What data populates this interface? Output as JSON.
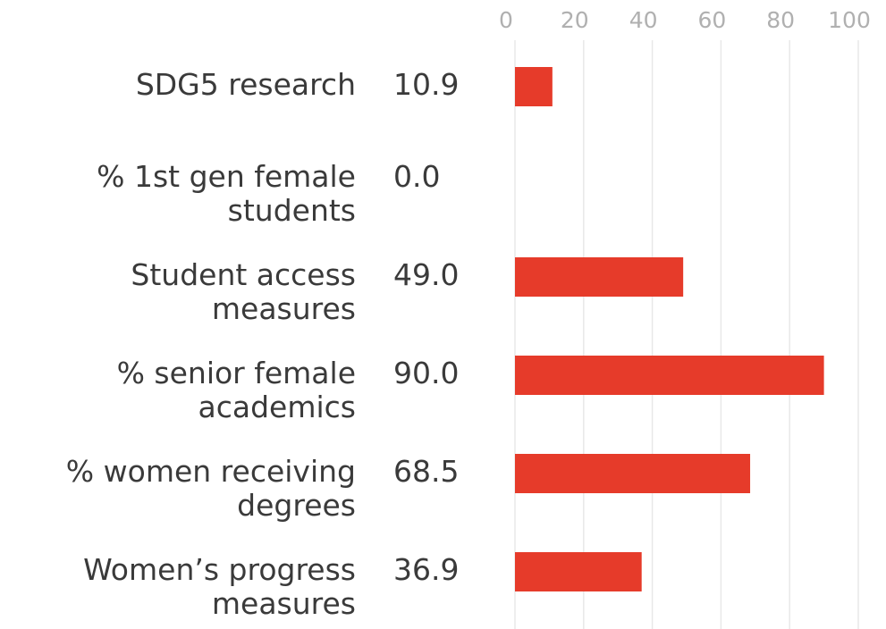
{
  "chart_data": {
    "type": "barh",
    "categories": [
      "SDG5 research",
      "% 1st gen female\nstudents",
      "Student access\nmeasures",
      "% senior female\nacademics",
      "% women receiving\ndegrees",
      "Women’s progress\nmeasures"
    ],
    "values": [
      10.9,
      0,
      49,
      90,
      68.5,
      36.9
    ],
    "value_labels": [
      "10.9",
      "0.0",
      "49.0",
      "90.0",
      "68.5",
      "36.9"
    ],
    "color": "#e63b2a",
    "xlim": [
      0,
      100
    ],
    "xticks": [
      0,
      20,
      40,
      60,
      80,
      100
    ],
    "grid": true
  }
}
